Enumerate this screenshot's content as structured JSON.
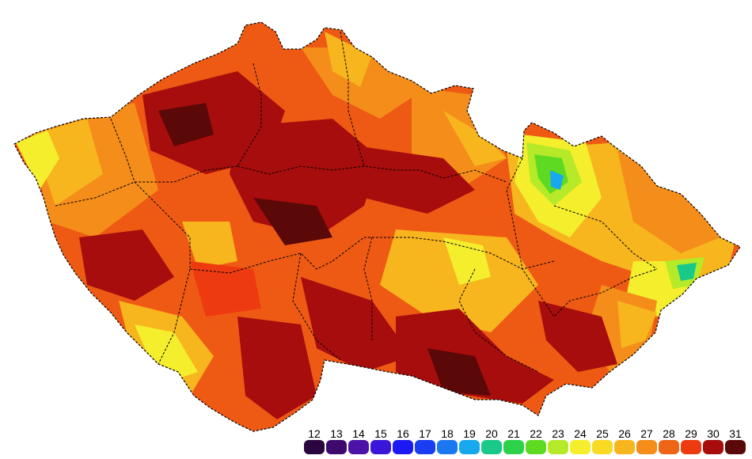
{
  "map": {
    "region": "Czech Republic",
    "layers": [
      "temperature-raster",
      "region-boundaries"
    ]
  },
  "legend": {
    "items": [
      {
        "label": "12",
        "color": "#2a0540"
      },
      {
        "label": "13",
        "color": "#3e0a6e"
      },
      {
        "label": "14",
        "color": "#4d12a8"
      },
      {
        "label": "15",
        "color": "#3a16d9"
      },
      {
        "label": "16",
        "color": "#1b1af2"
      },
      {
        "label": "17",
        "color": "#1a3df2"
      },
      {
        "label": "18",
        "color": "#1b78f0"
      },
      {
        "label": "19",
        "color": "#18a8ee"
      },
      {
        "label": "20",
        "color": "#19c98a"
      },
      {
        "label": "21",
        "color": "#2ed24a"
      },
      {
        "label": "22",
        "color": "#5fda23"
      },
      {
        "label": "23",
        "color": "#b6ea28"
      },
      {
        "label": "24",
        "color": "#f4ee2c"
      },
      {
        "label": "25",
        "color": "#f8d924"
      },
      {
        "label": "26",
        "color": "#f7b51e"
      },
      {
        "label": "27",
        "color": "#f48d1a"
      },
      {
        "label": "28",
        "color": "#ee6516"
      },
      {
        "label": "29",
        "color": "#ee3a10"
      },
      {
        "label": "30",
        "color": "#a70d0c"
      },
      {
        "label": "31",
        "color": "#5a0808"
      }
    ]
  }
}
